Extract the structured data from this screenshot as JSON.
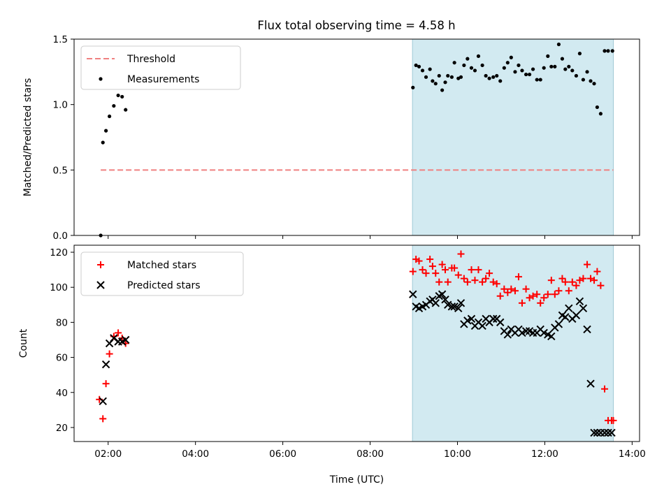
{
  "title": "Flux total observing time = 4.58 h",
  "colors": {
    "threshold": "#f08080",
    "measurement": "#000000",
    "matched": "#ff0000",
    "predicted": "#000000",
    "span": "#add8e6"
  },
  "chart_data": [
    {
      "type": "scatter",
      "ylabel": "Matched/Predicted stars",
      "xlim": [
        1.22,
        14.17
      ],
      "ylim": [
        0,
        1.5
      ],
      "yticks": [
        0,
        0.5,
        1.0,
        1.5
      ],
      "ytick_labels": [
        "0.0",
        "0.5",
        "1.0",
        "1.5"
      ],
      "shaded_span": [
        8.97,
        13.57
      ],
      "legend": [
        "Threshold",
        "Measurements"
      ],
      "legend_position": "upper-left",
      "series": [
        {
          "name": "Threshold",
          "style": "dashed-line",
          "x": [
            1.83,
            13.57
          ],
          "y": [
            0.5,
            0.5
          ]
        },
        {
          "name": "Measurements",
          "style": "dot",
          "x": [
            1.83,
            1.88,
            1.95,
            2.03,
            2.13,
            2.23,
            2.32,
            2.4,
            8.98,
            9.05,
            9.12,
            9.2,
            9.28,
            9.37,
            9.43,
            9.5,
            9.58,
            9.65,
            9.72,
            9.78,
            9.87,
            9.93,
            10.02,
            10.08,
            10.15,
            10.23,
            10.32,
            10.4,
            10.48,
            10.57,
            10.65,
            10.73,
            10.82,
            10.9,
            10.98,
            11.07,
            11.15,
            11.23,
            11.32,
            11.4,
            11.48,
            11.57,
            11.65,
            11.73,
            11.82,
            11.9,
            11.98,
            12.07,
            12.15,
            12.23,
            12.32,
            12.4,
            12.47,
            12.55,
            12.63,
            12.72,
            12.8,
            12.88,
            12.97,
            13.05,
            13.13,
            13.2,
            13.28,
            13.37,
            13.45,
            13.55
          ],
          "y": [
            0.0,
            0.71,
            0.8,
            0.91,
            0.99,
            1.07,
            1.06,
            0.96,
            1.13,
            1.3,
            1.29,
            1.26,
            1.21,
            1.27,
            1.18,
            1.16,
            1.22,
            1.11,
            1.17,
            1.22,
            1.21,
            1.32,
            1.2,
            1.21,
            1.3,
            1.35,
            1.28,
            1.26,
            1.37,
            1.3,
            1.22,
            1.2,
            1.21,
            1.22,
            1.18,
            1.28,
            1.32,
            1.36,
            1.25,
            1.3,
            1.26,
            1.23,
            1.23,
            1.27,
            1.19,
            1.19,
            1.28,
            1.37,
            1.29,
            1.29,
            1.46,
            1.35,
            1.27,
            1.29,
            1.26,
            1.22,
            1.39,
            1.19,
            1.25,
            1.18,
            1.16,
            0.98,
            0.93,
            1.41,
            1.41,
            1.41
          ]
        }
      ]
    },
    {
      "type": "scatter",
      "xlabel": "Time (UTC)",
      "ylabel": "Count",
      "xlim": [
        1.22,
        14.17
      ],
      "ylim": [
        12,
        124
      ],
      "xticks": [
        2,
        4,
        6,
        8,
        10,
        12,
        14
      ],
      "xtick_labels": [
        "02:00",
        "04:00",
        "06:00",
        "08:00",
        "10:00",
        "12:00",
        "14:00"
      ],
      "yticks": [
        20,
        40,
        60,
        80,
        100,
        120
      ],
      "ytick_labels": [
        "20",
        "40",
        "60",
        "80",
        "100",
        "120"
      ],
      "shaded_span": [
        8.97,
        13.57
      ],
      "legend": [
        "Matched stars",
        "Predicted stars"
      ],
      "legend_position": "upper-left",
      "series": [
        {
          "name": "Matched stars",
          "style": "plus",
          "x": [
            1.8,
            1.88,
            1.95,
            2.03,
            2.13,
            2.23,
            2.32,
            2.4,
            8.98,
            9.05,
            9.12,
            9.2,
            9.28,
            9.37,
            9.43,
            9.5,
            9.58,
            9.65,
            9.72,
            9.78,
            9.87,
            9.93,
            10.02,
            10.08,
            10.15,
            10.23,
            10.32,
            10.4,
            10.48,
            10.57,
            10.65,
            10.73,
            10.82,
            10.9,
            10.98,
            11.07,
            11.15,
            11.23,
            11.32,
            11.4,
            11.48,
            11.57,
            11.65,
            11.73,
            11.82,
            11.9,
            11.98,
            12.07,
            12.15,
            12.23,
            12.32,
            12.4,
            12.47,
            12.55,
            12.63,
            12.72,
            12.8,
            12.88,
            12.97,
            13.05,
            13.13,
            13.2,
            13.28,
            13.37,
            13.45,
            13.53,
            13.57
          ],
          "y": [
            36,
            25,
            45,
            62,
            72,
            74,
            71,
            68,
            109,
            116,
            115,
            110,
            108,
            116,
            112,
            108,
            103,
            113,
            110,
            103,
            111,
            111,
            107,
            119,
            105,
            103,
            110,
            104,
            110,
            103,
            105,
            108,
            103,
            102,
            95,
            99,
            97,
            99,
            98,
            106,
            91,
            99,
            94,
            95,
            96,
            91,
            94,
            96,
            104,
            96,
            98,
            105,
            103,
            98,
            103,
            101,
            104,
            105,
            113,
            105,
            104,
            109,
            101,
            42,
            24,
            24,
            24
          ]
        },
        {
          "name": "Predicted stars",
          "style": "x",
          "x": [
            1.88,
            1.95,
            2.03,
            2.13,
            2.23,
            2.32,
            2.4,
            8.98,
            9.05,
            9.12,
            9.2,
            9.28,
            9.37,
            9.43,
            9.5,
            9.58,
            9.65,
            9.72,
            9.78,
            9.87,
            9.93,
            10.02,
            10.08,
            10.15,
            10.23,
            10.32,
            10.4,
            10.48,
            10.57,
            10.65,
            10.73,
            10.82,
            10.9,
            10.98,
            11.07,
            11.15,
            11.23,
            11.32,
            11.4,
            11.48,
            11.57,
            11.65,
            11.73,
            11.82,
            11.9,
            11.98,
            12.07,
            12.15,
            12.23,
            12.32,
            12.4,
            12.47,
            12.55,
            12.63,
            12.72,
            12.8,
            12.88,
            12.97,
            13.05,
            13.13,
            13.2,
            13.28,
            13.37,
            13.45,
            13.53
          ],
          "y": [
            35,
            56,
            68,
            71,
            69,
            69,
            70,
            96,
            89,
            88,
            89,
            90,
            92,
            93,
            91,
            95,
            96,
            93,
            90,
            89,
            89,
            88,
            91,
            79,
            81,
            82,
            78,
            80,
            78,
            82,
            80,
            82,
            82,
            80,
            75,
            73,
            76,
            74,
            76,
            74,
            75,
            75,
            74,
            74,
            76,
            74,
            73,
            72,
            77,
            79,
            84,
            83,
            88,
            82,
            84,
            92,
            88,
            76,
            45,
            17,
            17,
            17,
            17,
            17,
            17
          ]
        }
      ]
    }
  ]
}
